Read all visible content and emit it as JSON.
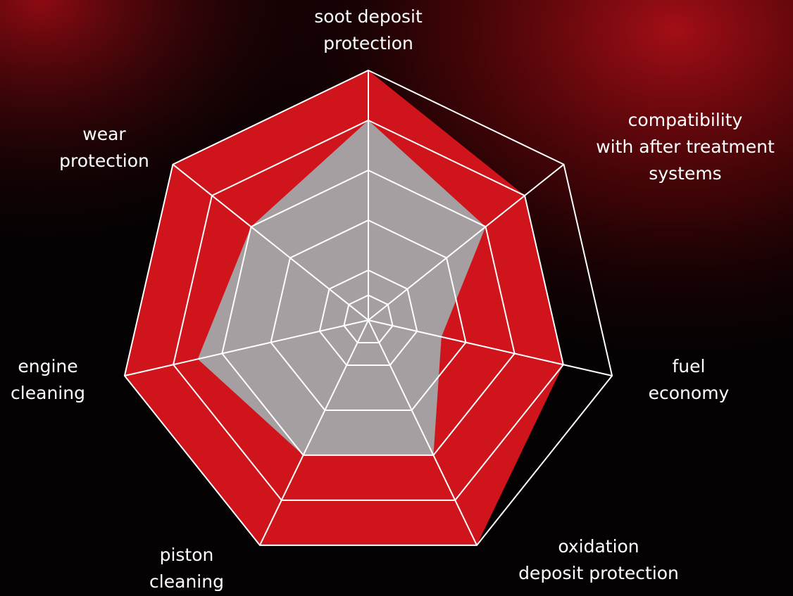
{
  "chart_data": {
    "type": "radar",
    "categories": [
      [
        "soot deposit",
        "protection"
      ],
      [
        "compatibility",
        "with after treatment",
        "systems"
      ],
      [
        "fuel",
        "economy"
      ],
      [
        "oxidation",
        "deposit protection"
      ],
      [
        "piston",
        "cleaning"
      ],
      [
        "engine",
        "cleaning"
      ],
      [
        "wear",
        "protection"
      ]
    ],
    "series": [
      {
        "color": "#d0141c",
        "values": [
          10,
          8,
          8,
          10,
          10,
          10,
          10
        ]
      },
      {
        "color": "#a3a6aa",
        "values": [
          8,
          6,
          3,
          6,
          6,
          7,
          6
        ]
      }
    ],
    "rlim": [
      0,
      10
    ],
    "rticks": [
      1,
      2,
      4,
      6,
      8,
      10
    ],
    "grid": true
  }
}
